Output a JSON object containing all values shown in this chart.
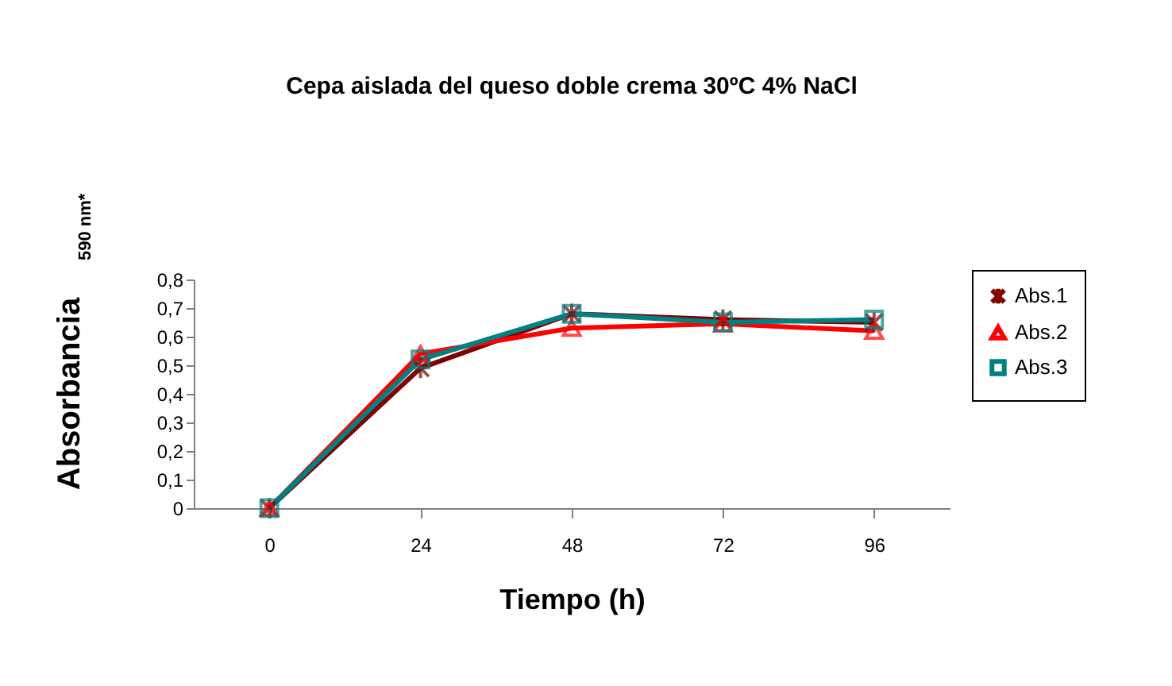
{
  "chart_data": {
    "type": "line",
    "title": "Cepa aislada del queso doble crema 30ºC 4% NaCl",
    "xlabel": "Tiempo (h)",
    "ylabel": "Absorbancia $_{590 nm*}$",
    "categories": [
      "0",
      "24",
      "48",
      "72",
      "96"
    ],
    "series": [
      {
        "name": "Abs.1",
        "color": "#800000",
        "marker": "cross",
        "values": [
          0,
          0.49,
          0.68,
          0.66,
          0.65
        ]
      },
      {
        "name": "Abs.2",
        "color": "#ff0000",
        "marker": "triangle",
        "values": [
          0,
          0.54,
          0.63,
          0.645,
          0.62
        ]
      },
      {
        "name": "Abs.3",
        "color": "#008080",
        "marker": "square",
        "values": [
          0,
          0.52,
          0.68,
          0.65,
          0.66
        ]
      }
    ],
    "ylim": [
      0,
      0.8
    ],
    "yticks": [
      {
        "value": 0,
        "label": "0"
      },
      {
        "value": 0.1,
        "label": "0,1"
      },
      {
        "value": 0.2,
        "label": "0,2"
      },
      {
        "value": 0.3,
        "label": "0,3"
      },
      {
        "value": 0.4,
        "label": "0,4"
      },
      {
        "value": 0.5,
        "label": "0,5"
      },
      {
        "value": 0.6,
        "label": "0,6"
      },
      {
        "value": 0.7,
        "label": "0,7"
      },
      {
        "value": 0.8,
        "label": "0,8"
      }
    ],
    "grid": false,
    "legend": "right",
    "line_style": "solid"
  }
}
